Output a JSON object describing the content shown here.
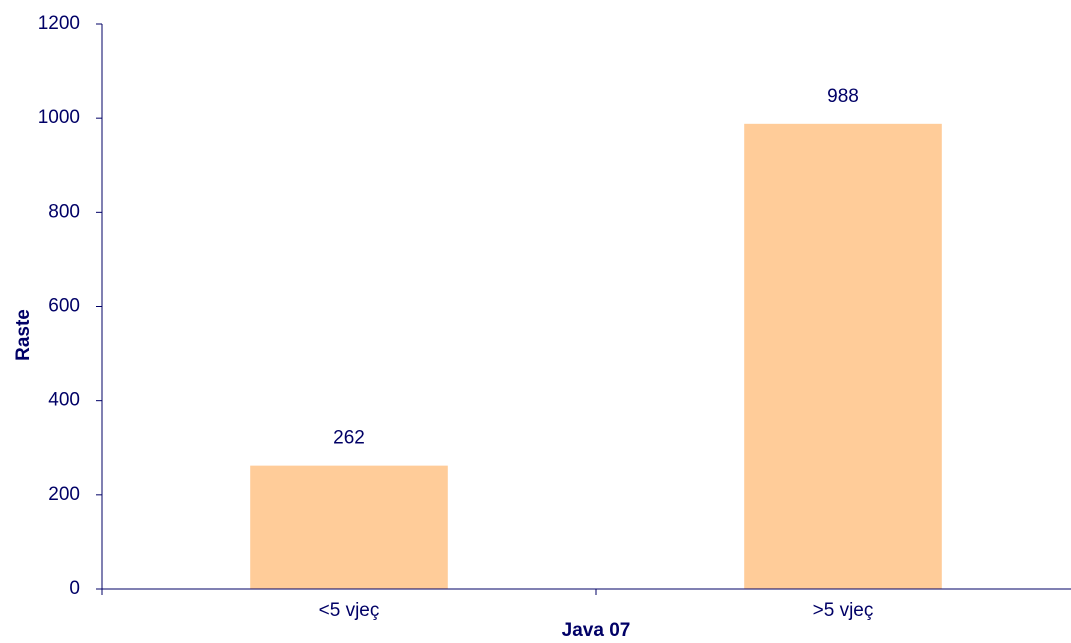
{
  "chart_data": {
    "type": "bar",
    "categories": [
      "<5 vjeç",
      ">5 vjeç"
    ],
    "values": [
      262,
      988
    ],
    "color": "#ffcc99",
    "xlabel": "Java 07",
    "ylabel": "Raste",
    "ylim": [
      0,
      1200
    ],
    "yticks": [
      0,
      200,
      400,
      600,
      800,
      1000,
      1200
    ],
    "grid": false
  }
}
